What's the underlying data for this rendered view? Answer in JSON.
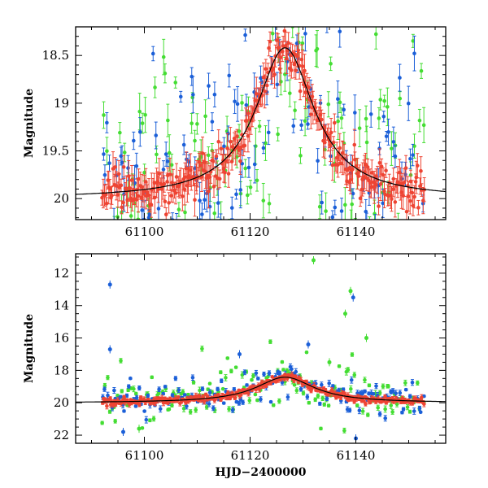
{
  "chart_data": [
    {
      "type": "scatter",
      "panel": "top",
      "title": "",
      "xlabel": "",
      "ylabel": "Magnitude",
      "xlim": [
        61087,
        61157
      ],
      "ylim": [
        20.22,
        18.2
      ],
      "y_inverted": true,
      "x_ticks": [
        61100,
        61120,
        61140
      ],
      "x_tick_labels": [
        "61100",
        "61120",
        "61140"
      ],
      "y_ticks": [
        18.5,
        19,
        19.5,
        20
      ],
      "y_tick_labels": [
        "18.5",
        "19",
        "19.5",
        "20"
      ],
      "x_range_data": [
        61092,
        61153
      ],
      "series": [
        {
          "name": "red",
          "color": "#ee4433",
          "n_points": 300,
          "scatter": 0.1
        },
        {
          "name": "blue",
          "color": "#1b5fd8",
          "n_points": 150,
          "scatter": 0.55
        },
        {
          "name": "green",
          "color": "#44dd33",
          "n_points": 150,
          "scatter": 0.75
        }
      ],
      "model_curve": {
        "name": "model",
        "color": "#000000",
        "baseline": 20.0,
        "peak_time": 61126.6,
        "peak_mag": 18.42
      }
    },
    {
      "type": "scatter",
      "panel": "bottom",
      "title": "",
      "xlabel": "HJD−2400000",
      "ylabel": "Magnitude",
      "xlim": [
        61087,
        61157
      ],
      "ylim": [
        22.5,
        10.8
      ],
      "y_inverted": true,
      "x_ticks": [
        61100,
        61120,
        61140
      ],
      "x_tick_labels": [
        "61100",
        "61120",
        "61140"
      ],
      "y_ticks": [
        12,
        14,
        16,
        18,
        20,
        22
      ],
      "y_tick_labels": [
        "12",
        "14",
        "16",
        "18",
        "20",
        "22"
      ],
      "x_range_data": [
        61092,
        61153
      ],
      "series": [
        {
          "name": "red",
          "color": "#ee4433",
          "n_points": 300,
          "scatter": 0.1
        },
        {
          "name": "blue",
          "color": "#1b5fd8",
          "n_points": 150,
          "scatter": 0.55
        },
        {
          "name": "green",
          "color": "#44dd33",
          "n_points": 150,
          "scatter": 0.75
        }
      ],
      "outliers": [
        {
          "x": 61093.5,
          "y": 12.7,
          "series": "blue"
        },
        {
          "x": 61093.5,
          "y": 16.7,
          "series": "blue"
        },
        {
          "x": 61132.0,
          "y": 11.2,
          "series": "green"
        },
        {
          "x": 61139.0,
          "y": 13.1,
          "series": "green"
        },
        {
          "x": 61139.5,
          "y": 13.5,
          "series": "blue"
        },
        {
          "x": 61138.0,
          "y": 14.5,
          "series": "green"
        },
        {
          "x": 61118.0,
          "y": 17.0,
          "series": "blue"
        },
        {
          "x": 61131.0,
          "y": 16.4,
          "series": "blue"
        },
        {
          "x": 61142.0,
          "y": 16.0,
          "series": "green"
        },
        {
          "x": 61135.0,
          "y": 17.5,
          "series": "green"
        },
        {
          "x": 61140.0,
          "y": 22.2,
          "series": "blue"
        },
        {
          "x": 61096.0,
          "y": 21.8,
          "series": "blue"
        },
        {
          "x": 61099.0,
          "y": 21.6,
          "series": "green"
        }
      ],
      "model_curve": {
        "name": "model",
        "color": "#000000",
        "baseline": 20.0,
        "peak_time": 61126.6,
        "peak_mag": 18.42
      }
    }
  ]
}
